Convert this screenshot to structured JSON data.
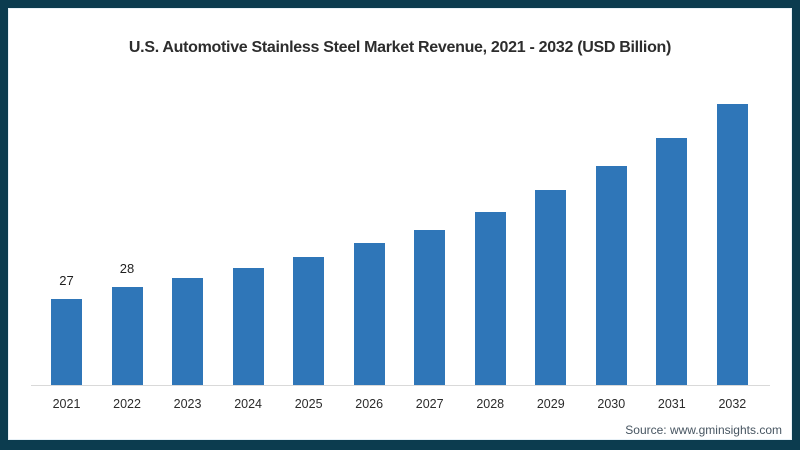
{
  "frame": {
    "border_color": "#0c3c4f",
    "background": "#ffffff"
  },
  "chart_data": {
    "type": "bar",
    "title": "U.S. Automotive Stainless Steel Market Revenue, 2021 - 2032 (USD Billion)",
    "categories": [
      "2021",
      "2022",
      "2023",
      "2024",
      "2025",
      "2026",
      "2027",
      "2028",
      "2029",
      "2030",
      "2031",
      "2032"
    ],
    "values": [
      27,
      28,
      28.8,
      29.6,
      30.5,
      31.7,
      32.8,
      34.3,
      36.1,
      38.1,
      40.5,
      43.3
    ],
    "data_labels": [
      "27",
      "28",
      "",
      "",
      "",
      "",
      "",
      "",
      "",
      "",
      "",
      ""
    ],
    "bar_color": "#2f76b8",
    "axis_line_color": "#d9d9d9",
    "xlabel": "",
    "ylabel": "",
    "ylim": [
      19.8,
      44.5
    ],
    "y_axis_visible": false,
    "grid": false,
    "legend": null
  },
  "footer": {
    "source_label": "Source: www.gminsights.com"
  }
}
